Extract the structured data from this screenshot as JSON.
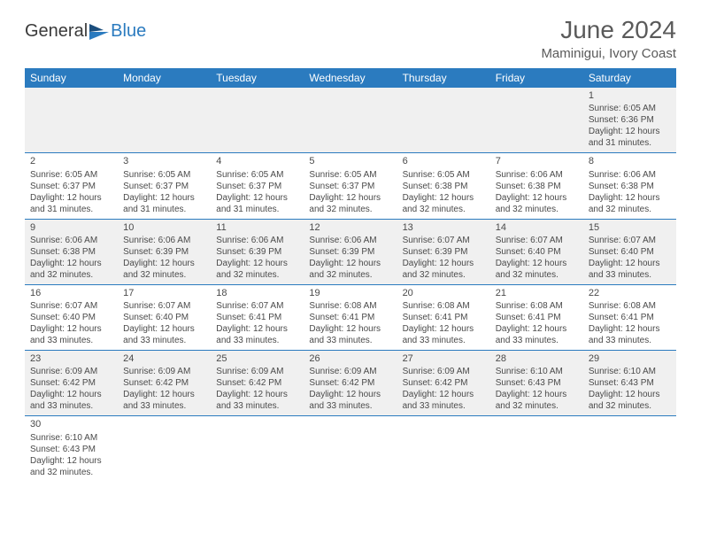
{
  "logo": {
    "text1": "General",
    "text2": "Blue"
  },
  "header": {
    "title": "June 2024",
    "subtitle": "Maminigui, Ivory Coast"
  },
  "colors": {
    "headerBg": "#2b7bbf",
    "headerText": "#ffffff",
    "altRow": "#f0f0f0",
    "border": "#2b7bbf",
    "text": "#4a4a4a"
  },
  "dayNames": [
    "Sunday",
    "Monday",
    "Tuesday",
    "Wednesday",
    "Thursday",
    "Friday",
    "Saturday"
  ],
  "weeks": [
    [
      null,
      null,
      null,
      null,
      null,
      null,
      {
        "n": "1",
        "sr": "Sunrise: 6:05 AM",
        "ss": "Sunset: 6:36 PM",
        "d1": "Daylight: 12 hours",
        "d2": "and 31 minutes."
      }
    ],
    [
      {
        "n": "2",
        "sr": "Sunrise: 6:05 AM",
        "ss": "Sunset: 6:37 PM",
        "d1": "Daylight: 12 hours",
        "d2": "and 31 minutes."
      },
      {
        "n": "3",
        "sr": "Sunrise: 6:05 AM",
        "ss": "Sunset: 6:37 PM",
        "d1": "Daylight: 12 hours",
        "d2": "and 31 minutes."
      },
      {
        "n": "4",
        "sr": "Sunrise: 6:05 AM",
        "ss": "Sunset: 6:37 PM",
        "d1": "Daylight: 12 hours",
        "d2": "and 31 minutes."
      },
      {
        "n": "5",
        "sr": "Sunrise: 6:05 AM",
        "ss": "Sunset: 6:37 PM",
        "d1": "Daylight: 12 hours",
        "d2": "and 32 minutes."
      },
      {
        "n": "6",
        "sr": "Sunrise: 6:05 AM",
        "ss": "Sunset: 6:38 PM",
        "d1": "Daylight: 12 hours",
        "d2": "and 32 minutes."
      },
      {
        "n": "7",
        "sr": "Sunrise: 6:06 AM",
        "ss": "Sunset: 6:38 PM",
        "d1": "Daylight: 12 hours",
        "d2": "and 32 minutes."
      },
      {
        "n": "8",
        "sr": "Sunrise: 6:06 AM",
        "ss": "Sunset: 6:38 PM",
        "d1": "Daylight: 12 hours",
        "d2": "and 32 minutes."
      }
    ],
    [
      {
        "n": "9",
        "sr": "Sunrise: 6:06 AM",
        "ss": "Sunset: 6:38 PM",
        "d1": "Daylight: 12 hours",
        "d2": "and 32 minutes."
      },
      {
        "n": "10",
        "sr": "Sunrise: 6:06 AM",
        "ss": "Sunset: 6:39 PM",
        "d1": "Daylight: 12 hours",
        "d2": "and 32 minutes."
      },
      {
        "n": "11",
        "sr": "Sunrise: 6:06 AM",
        "ss": "Sunset: 6:39 PM",
        "d1": "Daylight: 12 hours",
        "d2": "and 32 minutes."
      },
      {
        "n": "12",
        "sr": "Sunrise: 6:06 AM",
        "ss": "Sunset: 6:39 PM",
        "d1": "Daylight: 12 hours",
        "d2": "and 32 minutes."
      },
      {
        "n": "13",
        "sr": "Sunrise: 6:07 AM",
        "ss": "Sunset: 6:39 PM",
        "d1": "Daylight: 12 hours",
        "d2": "and 32 minutes."
      },
      {
        "n": "14",
        "sr": "Sunrise: 6:07 AM",
        "ss": "Sunset: 6:40 PM",
        "d1": "Daylight: 12 hours",
        "d2": "and 32 minutes."
      },
      {
        "n": "15",
        "sr": "Sunrise: 6:07 AM",
        "ss": "Sunset: 6:40 PM",
        "d1": "Daylight: 12 hours",
        "d2": "and 33 minutes."
      }
    ],
    [
      {
        "n": "16",
        "sr": "Sunrise: 6:07 AM",
        "ss": "Sunset: 6:40 PM",
        "d1": "Daylight: 12 hours",
        "d2": "and 33 minutes."
      },
      {
        "n": "17",
        "sr": "Sunrise: 6:07 AM",
        "ss": "Sunset: 6:40 PM",
        "d1": "Daylight: 12 hours",
        "d2": "and 33 minutes."
      },
      {
        "n": "18",
        "sr": "Sunrise: 6:07 AM",
        "ss": "Sunset: 6:41 PM",
        "d1": "Daylight: 12 hours",
        "d2": "and 33 minutes."
      },
      {
        "n": "19",
        "sr": "Sunrise: 6:08 AM",
        "ss": "Sunset: 6:41 PM",
        "d1": "Daylight: 12 hours",
        "d2": "and 33 minutes."
      },
      {
        "n": "20",
        "sr": "Sunrise: 6:08 AM",
        "ss": "Sunset: 6:41 PM",
        "d1": "Daylight: 12 hours",
        "d2": "and 33 minutes."
      },
      {
        "n": "21",
        "sr": "Sunrise: 6:08 AM",
        "ss": "Sunset: 6:41 PM",
        "d1": "Daylight: 12 hours",
        "d2": "and 33 minutes."
      },
      {
        "n": "22",
        "sr": "Sunrise: 6:08 AM",
        "ss": "Sunset: 6:41 PM",
        "d1": "Daylight: 12 hours",
        "d2": "and 33 minutes."
      }
    ],
    [
      {
        "n": "23",
        "sr": "Sunrise: 6:09 AM",
        "ss": "Sunset: 6:42 PM",
        "d1": "Daylight: 12 hours",
        "d2": "and 33 minutes."
      },
      {
        "n": "24",
        "sr": "Sunrise: 6:09 AM",
        "ss": "Sunset: 6:42 PM",
        "d1": "Daylight: 12 hours",
        "d2": "and 33 minutes."
      },
      {
        "n": "25",
        "sr": "Sunrise: 6:09 AM",
        "ss": "Sunset: 6:42 PM",
        "d1": "Daylight: 12 hours",
        "d2": "and 33 minutes."
      },
      {
        "n": "26",
        "sr": "Sunrise: 6:09 AM",
        "ss": "Sunset: 6:42 PM",
        "d1": "Daylight: 12 hours",
        "d2": "and 33 minutes."
      },
      {
        "n": "27",
        "sr": "Sunrise: 6:09 AM",
        "ss": "Sunset: 6:42 PM",
        "d1": "Daylight: 12 hours",
        "d2": "and 33 minutes."
      },
      {
        "n": "28",
        "sr": "Sunrise: 6:10 AM",
        "ss": "Sunset: 6:43 PM",
        "d1": "Daylight: 12 hours",
        "d2": "and 32 minutes."
      },
      {
        "n": "29",
        "sr": "Sunrise: 6:10 AM",
        "ss": "Sunset: 6:43 PM",
        "d1": "Daylight: 12 hours",
        "d2": "and 32 minutes."
      }
    ],
    [
      {
        "n": "30",
        "sr": "Sunrise: 6:10 AM",
        "ss": "Sunset: 6:43 PM",
        "d1": "Daylight: 12 hours",
        "d2": "and 32 minutes."
      },
      null,
      null,
      null,
      null,
      null,
      null
    ]
  ]
}
